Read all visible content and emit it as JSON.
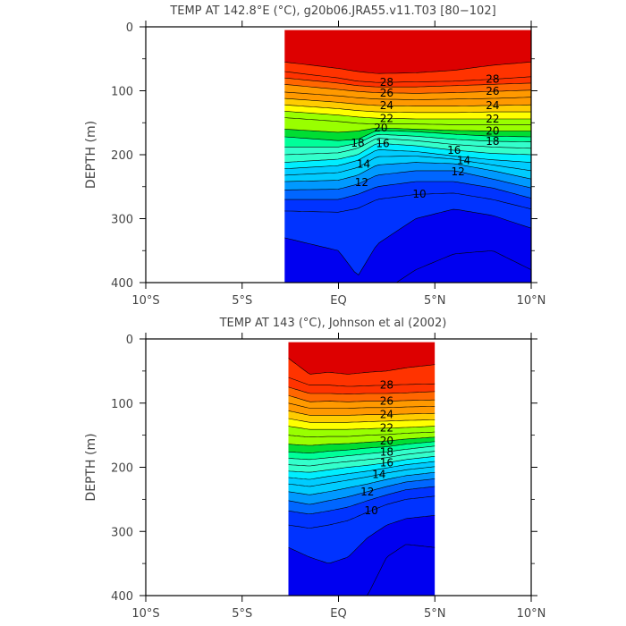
{
  "colors": {
    "contour_fill_ramp": [
      "#0000f0",
      "#0033ff",
      "#0066ff",
      "#0099ff",
      "#00ccff",
      "#00eeff",
      "#33ffcc",
      "#00ff99",
      "#00dd33",
      "#99ff00",
      "#ffff00",
      "#ffcc00",
      "#ff9900",
      "#ff6600",
      "#ff3300",
      "#dd0000"
    ],
    "contour_line": "#000000",
    "axis": "#000000"
  },
  "chart_data": [
    {
      "type": "heatmap",
      "title": "TEMP AT 142.8°E (°C), g20b06.JRA55.v11.T03 [80−102]",
      "xlabel": "",
      "ylabel": "DEPTH (m)",
      "xlim": [
        -10,
        10
      ],
      "ylim": [
        400,
        0
      ],
      "x_ticks": [
        -10,
        -5,
        0,
        5,
        10
      ],
      "x_tick_labels": [
        "10°S",
        "5°S",
        "EQ",
        "5°N",
        "10°N"
      ],
      "y_ticks": [
        0,
        100,
        200,
        300,
        400
      ],
      "y_tick_labels": [
        "0",
        "100",
        "200",
        "300",
        "400"
      ],
      "data_extent_lat": [
        -2.8,
        10
      ],
      "data_extent_depth": [
        5,
        400
      ],
      "contour_interval": 1,
      "color_range": [
        8,
        30
      ],
      "labeled_contours": [
        {
          "value": 28,
          "lat": [
            2.5,
            8
          ]
        },
        {
          "value": 26,
          "lat": [
            2.5,
            8
          ]
        },
        {
          "value": 24,
          "lat": [
            2.5,
            8
          ]
        },
        {
          "value": 22,
          "lat": [
            2.5,
            8
          ]
        },
        {
          "value": 20,
          "lat": [
            2.2,
            8
          ]
        },
        {
          "value": 18,
          "lat": [
            1,
            8
          ]
        },
        {
          "value": 16,
          "lat": [
            2.3,
            6
          ]
        },
        {
          "value": 14,
          "lat": [
            1.3,
            6.5
          ]
        },
        {
          "value": 12,
          "lat": [
            1.2,
            6.2
          ]
        },
        {
          "value": 10,
          "lat": [
            4.2
          ]
        }
      ],
      "isotherm_depths": {
        "lat": [
          -2.8,
          0,
          1,
          2,
          4,
          6,
          8,
          10
        ],
        "series": [
          {
            "name": "29",
            "values": [
              55,
              65,
              70,
              73,
              72,
              68,
              60,
              55
            ]
          },
          {
            "name": "28",
            "values": [
              70,
              80,
              85,
              87,
              86,
              85,
              82,
              78
            ]
          },
          {
            "name": "27",
            "values": [
              80,
              88,
              92,
              94,
              94,
              92,
              90,
              88
            ]
          },
          {
            "name": "26",
            "values": [
              90,
              98,
              101,
              103,
              104,
              103,
              101,
              99
            ]
          },
          {
            "name": "25",
            "values": [
              102,
              108,
              111,
              113,
              114,
              113,
              112,
              110
            ]
          },
          {
            "name": "24",
            "values": [
              112,
              118,
              121,
              123,
              124,
              124,
              123,
              122
            ]
          },
          {
            "name": "23",
            "values": [
              122,
              128,
              131,
              133,
              134,
              134,
              133,
              133
            ]
          },
          {
            "name": "22",
            "values": [
              132,
              138,
              141,
              143,
              144,
              144,
              144,
              144
            ]
          },
          {
            "name": "21",
            "values": [
              142,
              148,
              151,
              152,
              152,
              153,
              153,
              153
            ]
          },
          {
            "name": "20",
            "values": [
              160,
              165,
              163,
              158,
              160,
              162,
              163,
              163
            ]
          },
          {
            "name": "19",
            "values": [
              172,
              178,
              176,
              162,
              164,
              168,
              171,
              172
            ]
          },
          {
            "name": "18",
            "values": [
              188,
              188,
              182,
              168,
              171,
              176,
              179,
              180
            ]
          },
          {
            "name": "17",
            "values": [
              200,
              197,
              190,
              174,
              178,
              184,
              188,
              190
            ]
          },
          {
            "name": "16",
            "values": [
              212,
              207,
              200,
              182,
              186,
              193,
              198,
              200
            ]
          },
          {
            "name": "15",
            "values": [
              222,
              217,
              209,
              192,
              195,
              202,
              208,
              212
            ]
          },
          {
            "name": "14",
            "values": [
              232,
              228,
              220,
              203,
              202,
              207,
              216,
              225
            ]
          },
          {
            "name": "13",
            "values": [
              242,
              240,
              232,
              216,
              212,
              214,
              225,
              238
            ]
          },
          {
            "name": "12",
            "values": [
              255,
              254,
              246,
              232,
              225,
              225,
              238,
              252
            ]
          },
          {
            "name": "11",
            "values": [
              270,
              270,
              262,
              250,
              242,
              242,
              252,
              268
            ]
          },
          {
            "name": "10",
            "values": [
              288,
              290,
              284,
              270,
              262,
              260,
              270,
              285
            ]
          },
          {
            "name": "9",
            "values": [
              330,
              350,
              390,
              340,
              300,
              285,
              295,
              315
            ]
          },
          {
            "name": "8",
            "values": [
              420,
              420,
              420,
              420,
              380,
              355,
              350,
              380
            ]
          }
        ]
      }
    },
    {
      "type": "heatmap",
      "title": "TEMP AT 143 (°C), Johnson et al (2002)",
      "xlabel": "",
      "ylabel": "DEPTH (m)",
      "xlim": [
        -10,
        10
      ],
      "ylim": [
        400,
        0
      ],
      "x_ticks": [
        -10,
        -5,
        0,
        5,
        10
      ],
      "x_tick_labels": [
        "10°S",
        "5°S",
        "EQ",
        "5°N",
        "10°N"
      ],
      "y_ticks": [
        0,
        100,
        200,
        300,
        400
      ],
      "y_tick_labels": [
        "0",
        "100",
        "200",
        "300",
        "400"
      ],
      "data_extent_lat": [
        -2.6,
        5
      ],
      "data_extent_depth": [
        5,
        400
      ],
      "contour_interval": 1,
      "color_range": [
        8,
        30
      ],
      "labeled_contours": [
        {
          "value": 28,
          "lat": [
            2.5
          ]
        },
        {
          "value": 26,
          "lat": [
            2.5
          ]
        },
        {
          "value": 24,
          "lat": [
            2.5
          ]
        },
        {
          "value": 22,
          "lat": [
            2.5
          ]
        },
        {
          "value": 20,
          "lat": [
            2.5
          ]
        },
        {
          "value": 18,
          "lat": [
            2.5
          ]
        },
        {
          "value": 16,
          "lat": [
            2.5
          ]
        },
        {
          "value": 14,
          "lat": [
            2.1
          ]
        },
        {
          "value": 12,
          "lat": [
            1.5
          ]
        },
        {
          "value": 10,
          "lat": [
            1.7
          ]
        }
      ],
      "isotherm_depths": {
        "lat": [
          -2.6,
          -1.5,
          -0.5,
          0.5,
          1.5,
          2.5,
          3.5,
          5
        ],
        "series": [
          {
            "name": "29",
            "values": [
              30,
              55,
              52,
              55,
              52,
              50,
              45,
              40
            ]
          },
          {
            "name": "28",
            "values": [
              60,
              72,
              72,
              74,
              73,
              72,
              71,
              70
            ]
          },
          {
            "name": "27",
            "values": [
              75,
              85,
              85,
              86,
              85,
              85,
              84,
              82
            ]
          },
          {
            "name": "26",
            "values": [
              88,
              98,
              97,
              98,
              97,
              97,
              96,
              95
            ]
          },
          {
            "name": "25",
            "values": [
              100,
              108,
              108,
              108,
              107,
              107,
              106,
              105
            ]
          },
          {
            "name": "24",
            "values": [
              112,
              119,
              119,
              119,
              118,
              118,
              117,
              116
            ]
          },
          {
            "name": "23",
            "values": [
              124,
              130,
              130,
              130,
              129,
              128,
              127,
              126
            ]
          },
          {
            "name": "22",
            "values": [
              136,
              141,
              141,
              141,
              140,
              139,
              138,
              136
            ]
          },
          {
            "name": "21",
            "values": [
              150,
              153,
              152,
              152,
              150,
              149,
              147,
              145
            ]
          },
          {
            "name": "20",
            "values": [
              164,
              166,
              164,
              163,
              161,
              159,
              156,
              153
            ]
          },
          {
            "name": "19",
            "values": [
              176,
              178,
              175,
              173,
              170,
              168,
              164,
              160
            ]
          },
          {
            "name": "18",
            "values": [
              186,
              188,
              185,
              182,
              179,
              176,
              172,
              167
            ]
          },
          {
            "name": "17",
            "values": [
              196,
              198,
              194,
              191,
              188,
              185,
              180,
              175
            ]
          },
          {
            "name": "16",
            "values": [
              206,
              208,
              204,
              200,
              197,
              193,
              188,
              183
            ]
          },
          {
            "name": "15",
            "values": [
              216,
              219,
              214,
              210,
              206,
              201,
              196,
              191
            ]
          },
          {
            "name": "14",
            "values": [
              226,
              230,
              225,
              220,
              215,
              209,
              204,
              199
            ]
          },
          {
            "name": "13",
            "values": [
              238,
              243,
              238,
              232,
              226,
              219,
              213,
              208
            ]
          },
          {
            "name": "12",
            "values": [
              252,
              258,
              252,
              246,
              238,
              230,
              223,
              218
            ]
          },
          {
            "name": "11",
            "values": [
              268,
              273,
              268,
              262,
              252,
              243,
              235,
              230
            ]
          },
          {
            "name": "10",
            "values": [
              290,
              295,
              290,
              283,
              270,
              258,
              250,
              245
            ]
          },
          {
            "name": "9",
            "values": [
              325,
              340,
              350,
              340,
              310,
              290,
              280,
              275
            ]
          },
          {
            "name": "8",
            "values": [
              420,
              420,
              420,
              420,
              400,
              340,
              320,
              325
            ]
          }
        ]
      }
    }
  ]
}
